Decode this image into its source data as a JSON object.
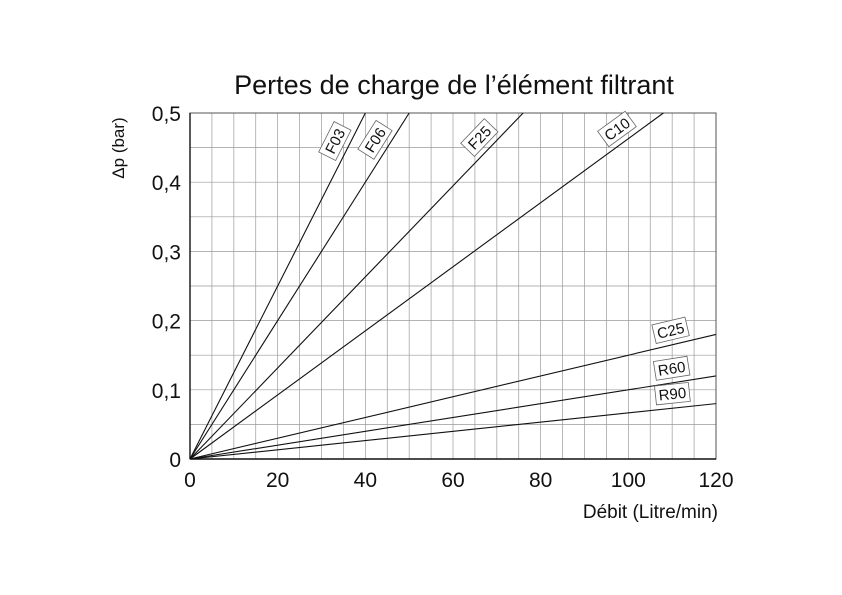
{
  "chart_data": {
    "type": "line",
    "title": "Pertes de charge de l’élément filtrant",
    "xlabel": "Débit (Litre/min)",
    "ylabel": "Δp (bar)",
    "xlim": [
      0,
      120
    ],
    "ylim": [
      0,
      0.5
    ],
    "x_ticks": [
      "0",
      "20",
      "40",
      "60",
      "80",
      "100",
      "120"
    ],
    "y_ticks": [
      "0",
      "0,1",
      "0,2",
      "0,3",
      "0,4",
      "0,5"
    ],
    "grid": true,
    "series": [
      {
        "name": "F03",
        "x": [
          0,
          40
        ],
        "y": [
          0,
          0.5
        ]
      },
      {
        "name": "F06",
        "x": [
          0,
          50
        ],
        "y": [
          0,
          0.5
        ]
      },
      {
        "name": "F25",
        "x": [
          0,
          76
        ],
        "y": [
          0,
          0.5
        ]
      },
      {
        "name": "C10",
        "x": [
          0,
          108
        ],
        "y": [
          0,
          0.5
        ]
      },
      {
        "name": "C25",
        "x": [
          0,
          120
        ],
        "y": [
          0,
          0.18
        ]
      },
      {
        "name": "R60",
        "x": [
          0,
          120
        ],
        "y": [
          0,
          0.12
        ]
      },
      {
        "name": "R90",
        "x": [
          0,
          120
        ],
        "y": [
          0,
          0.08
        ]
      }
    ]
  }
}
